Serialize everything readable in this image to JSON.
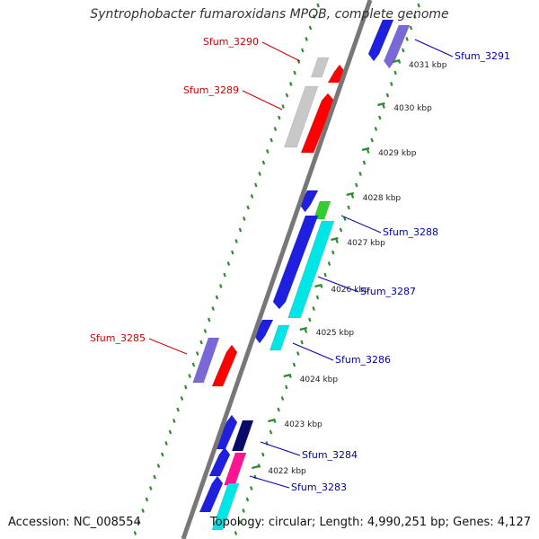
{
  "title": "Syntrophobacter fumaroxidans MPOB, complete genome",
  "accession": "Accession: NC_008554",
  "summary": "Topology: circular; Length: 4,990,251 bp; Genes: 4,127",
  "colors": {
    "backbone": "#777777",
    "tick": "#2e8b2e",
    "reverse_label": "#cc0000",
    "forward_label": "#0000aa",
    "blue": "#1f1fe0",
    "cyan": "#00e6e6",
    "red": "#ff0000",
    "gray": "#c8c8c8",
    "slate": "#7b68d8",
    "green": "#33cc33",
    "navy": "#0a0a6a",
    "magenta": "#ff1493"
  },
  "kbp_marks": [
    "4022 kbp",
    "4023 kbp",
    "4024 kbp",
    "4025 kbp",
    "4026 kbp",
    "4027 kbp",
    "4028 kbp",
    "4029 kbp",
    "4030 kbp",
    "4031 kbp"
  ],
  "gene_labels": [
    {
      "text": "Sfum_3291",
      "strand": "forward"
    },
    {
      "text": "Sfum_3290",
      "strand": "reverse"
    },
    {
      "text": "Sfum_3289",
      "strand": "reverse"
    },
    {
      "text": "Sfum_3288",
      "strand": "forward"
    },
    {
      "text": "Sfum_3287",
      "strand": "forward"
    },
    {
      "text": "Sfum_3286",
      "strand": "forward"
    },
    {
      "text": "Sfum_3285",
      "strand": "reverse"
    },
    {
      "text": "Sfum_3284",
      "strand": "forward"
    },
    {
      "text": "Sfum_3283",
      "strand": "forward"
    }
  ]
}
